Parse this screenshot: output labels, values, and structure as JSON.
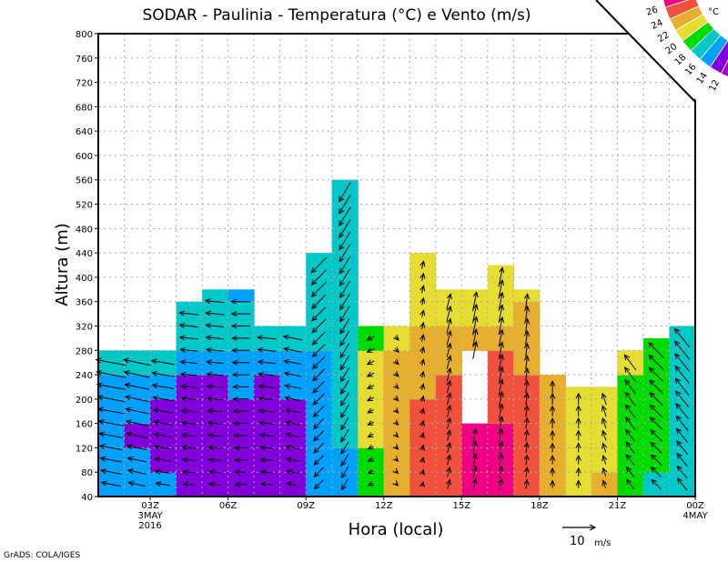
{
  "chart_data": {
    "type": "heatmap",
    "title": "SODAR - Paulinia - Temperatura (°C) e Vento (m/s)",
    "xlabel": "Hora (local)",
    "ylabel": "Altura (m)",
    "footer": "GrADS: COLA/IGES",
    "ylim": [
      40,
      800
    ],
    "yticks": [
      "40",
      "80",
      "120",
      "160",
      "200",
      "240",
      "280",
      "320",
      "360",
      "400",
      "440",
      "480",
      "520",
      "560",
      "600",
      "640",
      "680",
      "720",
      "760",
      "800"
    ],
    "xlim_hours": [
      1,
      24
    ],
    "xticks": [
      {
        "hour": 3,
        "label": "03Z",
        "sub1": "3MAY",
        "sub2": "2016"
      },
      {
        "hour": 6,
        "label": "06Z"
      },
      {
        "hour": 9,
        "label": "09Z"
      },
      {
        "hour": 12,
        "label": "12Z"
      },
      {
        "hour": 15,
        "label": "15Z"
      },
      {
        "hour": 18,
        "label": "18Z"
      },
      {
        "hour": 21,
        "label": "21Z"
      },
      {
        "hour": 24,
        "label": "00Z",
        "sub1": "4MAY"
      }
    ],
    "grid": true,
    "legend": {
      "unit": "°C",
      "placement": "top-right",
      "levels": [
        "12",
        "14",
        "16",
        "18",
        "20",
        "22",
        "24",
        "26"
      ],
      "colors": [
        "#a000c8",
        "#8200dc",
        "#00a0ff",
        "#00c8c8",
        "#00dc00",
        "#e6dc32",
        "#e6af2d",
        "#f0503c",
        "#f00082"
      ]
    },
    "vector_reference": {
      "value": 10,
      "label": "10",
      "unit": "m/s"
    },
    "cell_height_m": 40,
    "columns": [
      {
        "start_hour": 1,
        "top": 280,
        "temps": [
          15,
          15,
          15,
          15,
          15,
          17
        ],
        "wind": [
          -8,
          1.5
        ]
      },
      {
        "start_hour": 2,
        "top": 280,
        "temps": [
          15,
          15,
          13,
          15,
          15,
          17
        ],
        "wind": [
          -7,
          1.5
        ]
      },
      {
        "start_hour": 3,
        "top": 280,
        "temps": [
          15,
          13,
          13,
          13,
          15,
          17
        ],
        "wind": [
          -6,
          1
        ]
      },
      {
        "start_hour": 4,
        "top": 360,
        "temps": [
          13,
          13,
          13,
          13,
          13,
          15,
          17,
          17
        ],
        "wind": [
          -5,
          0.5
        ]
      },
      {
        "start_hour": 5,
        "top": 380,
        "temps": [
          13,
          13,
          13,
          13,
          13,
          15,
          17,
          17,
          17
        ],
        "wind": [
          -5,
          0.5
        ]
      },
      {
        "start_hour": 6,
        "top": 380,
        "temps": [
          13,
          13,
          13,
          13,
          15,
          15,
          17,
          17,
          15
        ],
        "wind": [
          -5,
          0
        ]
      },
      {
        "start_hour": 7,
        "top": 340,
        "temps": [
          12.5,
          13,
          13,
          13,
          13,
          15,
          17
        ],
        "wind": [
          -5,
          0.5
        ]
      },
      {
        "start_hour": 8,
        "top": 340,
        "temps": [
          13,
          13,
          13,
          13,
          15,
          15,
          17
        ],
        "wind": [
          -5,
          1
        ]
      },
      {
        "start_hour": 9,
        "top": 460,
        "temps": [
          15,
          15,
          15,
          15,
          15,
          15,
          17,
          17,
          17,
          17
        ],
        "wind": [
          -4,
          -4
        ]
      },
      {
        "start_hour": 10,
        "top": 560,
        "temps": [
          15,
          15,
          17,
          17,
          17,
          17,
          17,
          17,
          17,
          17,
          17,
          17,
          17
        ],
        "wind": [
          -3,
          -5
        ]
      },
      {
        "start_hour": 11,
        "top": 340,
        "temps": [
          19,
          19,
          21,
          21,
          21,
          21,
          19
        ],
        "wind": [
          -2,
          -1
        ]
      },
      {
        "start_hour": 12,
        "top": 340,
        "temps": [
          23,
          23,
          23,
          23,
          23,
          23,
          21
        ],
        "wind": [
          1,
          -1
        ]
      },
      {
        "start_hour": 13,
        "top": 460,
        "temps": [
          25,
          25,
          25,
          25,
          23,
          23,
          23,
          21,
          21,
          21
        ],
        "wind": [
          0.5,
          2
        ]
      },
      {
        "start_hour": 14,
        "top": 380,
        "temps": [
          25,
          25,
          25,
          25,
          25,
          23,
          23,
          21,
          21
        ],
        "wind": [
          1,
          4
        ]
      },
      {
        "start_hour": 15,
        "top": 380,
        "temps": [
          27,
          27,
          27,
          null,
          null,
          null,
          23,
          21,
          21
        ],
        "wind": [
          1,
          5
        ]
      },
      {
        "start_hour": 16,
        "top": 420,
        "temps": [
          27,
          27,
          27,
          25,
          25,
          25,
          23,
          21,
          21,
          21
        ],
        "wind": [
          1,
          5
        ]
      },
      {
        "start_hour": 17,
        "top": 380,
        "temps": [
          25,
          25,
          25,
          25,
          25,
          23,
          23,
          23,
          21
        ],
        "wind": [
          0.5,
          4
        ]
      },
      {
        "start_hour": 18,
        "top": 240,
        "temps": [
          23,
          23,
          23,
          23,
          23
        ],
        "wind": [
          0,
          3
        ]
      },
      {
        "start_hour": 19,
        "top": 220,
        "temps": [
          21,
          21,
          21,
          21,
          21
        ],
        "wind": [
          0,
          3
        ]
      },
      {
        "start_hour": 20,
        "top": 220,
        "temps": [
          23,
          21,
          21,
          21,
          21
        ],
        "wind": [
          -1,
          3
        ]
      },
      {
        "start_hour": 21,
        "top": 280,
        "temps": [
          19,
          19,
          19,
          19,
          19,
          21
        ],
        "wind": [
          -3,
          4
        ]
      },
      {
        "start_hour": 22,
        "top": 300,
        "temps": [
          17,
          19,
          19,
          19,
          19,
          19,
          19
        ],
        "wind": [
          -4,
          4
        ]
      },
      {
        "start_hour": 23,
        "top": 320,
        "temps": [
          17,
          17,
          17,
          17,
          17,
          17,
          17
        ],
        "wind": [
          -4,
          5
        ]
      }
    ]
  }
}
